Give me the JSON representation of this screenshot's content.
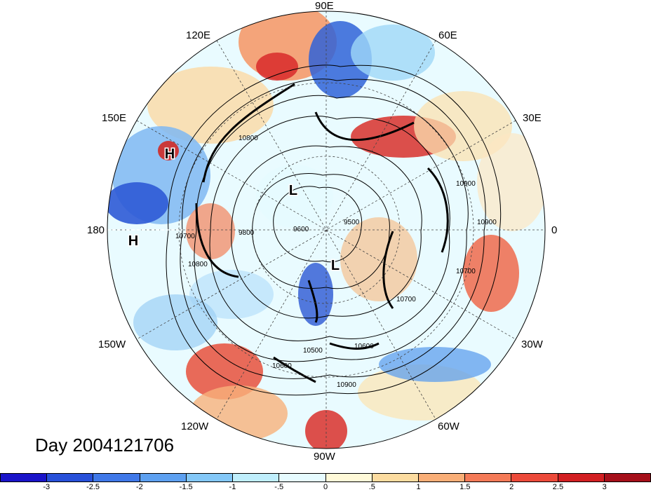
{
  "title": "Day 2004121706",
  "longitude_labels": {
    "n90e": "90E",
    "n120e": "120E",
    "n60e": "60E",
    "n150e": "150E",
    "n30e": "30E",
    "n180": "180",
    "n0": "0",
    "n150w": "150W",
    "n30w": "30W",
    "n120w": "120W",
    "n60w": "60W",
    "n90w": "90W"
  },
  "pressure_markers": [
    {
      "name": "high-marker-1",
      "text": "H"
    },
    {
      "name": "high-marker-2",
      "text": "H"
    },
    {
      "name": "low-marker-1",
      "text": "L"
    },
    {
      "name": "low-marker-2",
      "text": "L"
    }
  ],
  "contour_labels": [
    "10800",
    "10900",
    "10700",
    "9800",
    "9600",
    "9500",
    "10700",
    "10600",
    "10500",
    "10900",
    "10600",
    "10900",
    "10700",
    "10800"
  ],
  "colorbar": {
    "colors": [
      "#1a14c9",
      "#2750d9",
      "#3f78e8",
      "#5da0f0",
      "#83c7f7",
      "#bfeefc",
      "#e6fbff",
      "#fff9d8",
      "#fcdca0",
      "#f9ae77",
      "#f47a57",
      "#ec4a3a",
      "#d21f22",
      "#a50f1a"
    ],
    "tick_labels": [
      "-3",
      "-2.5",
      "-2",
      "-1.5",
      "-1",
      "-.5",
      "0",
      ".5",
      "1",
      "1.5",
      "2",
      "2.5",
      "3"
    ]
  }
}
